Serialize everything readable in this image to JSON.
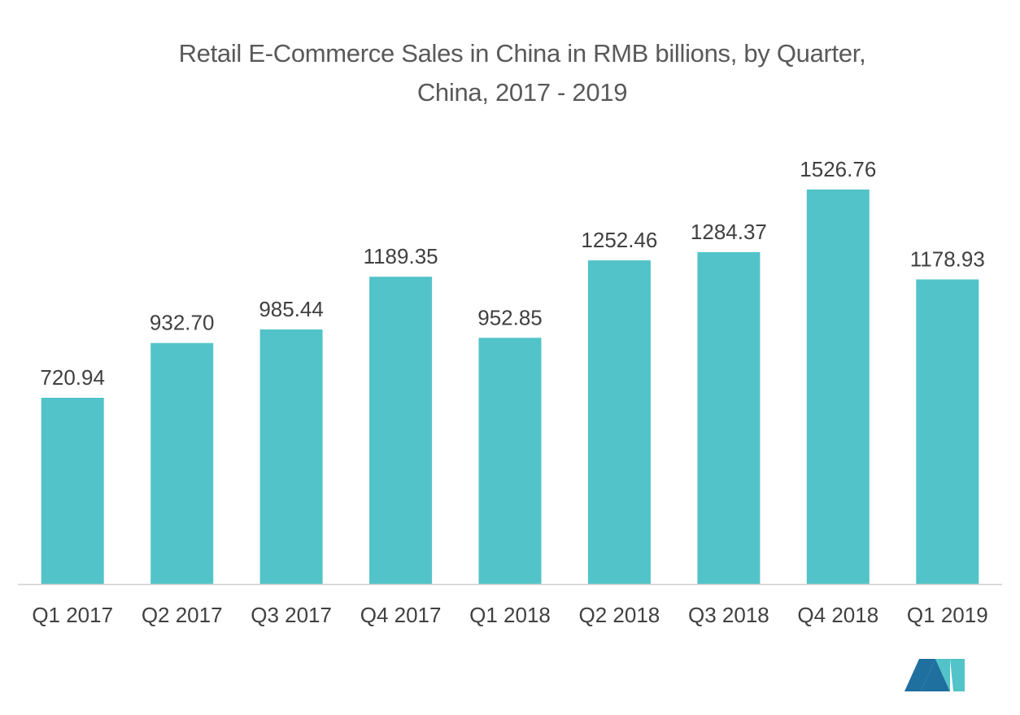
{
  "chart_data": {
    "type": "bar",
    "title": "Retail E-Commerce Sales in China in RMB billions, by Quarter,",
    "subtitle": "China, 2017 - 2019",
    "xlabel": "",
    "ylabel": "",
    "categories": [
      "Q1 2017",
      "Q2 2017",
      "Q3 2017",
      "Q4 2017",
      "Q1 2018",
      "Q2 2018",
      "Q3 2018",
      "Q4 2018",
      "Q1 2019"
    ],
    "values": [
      720.94,
      932.7,
      985.44,
      1189.35,
      952.85,
      1252.46,
      1284.37,
      1526.76,
      1178.93
    ],
    "value_labels": [
      "720.94",
      "932.70",
      "985.44",
      "1189.35",
      "952.85",
      "1252.46",
      "1284.37",
      "1526.76",
      "1178.93"
    ],
    "ylim": [
      0,
      1526.76
    ],
    "grid": false,
    "legend": "none",
    "bar_color": "#52c3c9",
    "axis_color": "#d0d0d0"
  },
  "logo": {
    "name": "mordor-intelligence-logo-icon",
    "colors": [
      "#1f6f9f",
      "#52c3c9"
    ]
  }
}
